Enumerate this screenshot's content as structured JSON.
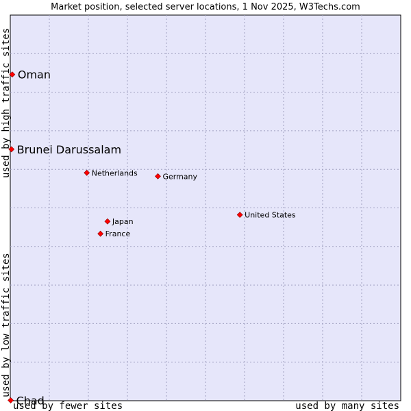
{
  "chart_data": {
    "type": "scatter",
    "title": "Market position, selected server locations, 1 Nov 2025, W3Techs.com",
    "xlabel_low": "used by fewer sites",
    "xlabel_high": "used by many sites",
    "ylabel_low": "used by low traffic sites",
    "ylabel_high": "used by high traffic sites",
    "xlim": [
      0,
      100
    ],
    "ylim": [
      0,
      100
    ],
    "grid": true,
    "points": [
      {
        "name": "Oman",
        "x": 0.5,
        "y": 84.6,
        "highlight": true
      },
      {
        "name": "Brunei Darussalam",
        "x": 0.3,
        "y": 65.2,
        "highlight": true
      },
      {
        "name": "Netherlands",
        "x": 19.6,
        "y": 59.1,
        "highlight": false
      },
      {
        "name": "Germany",
        "x": 37.8,
        "y": 58.2,
        "highlight": false
      },
      {
        "name": "United States",
        "x": 58.8,
        "y": 48.2,
        "highlight": false
      },
      {
        "name": "Japan",
        "x": 24.9,
        "y": 46.5,
        "highlight": false
      },
      {
        "name": "France",
        "x": 23.1,
        "y": 43.3,
        "highlight": false
      },
      {
        "name": "Chad",
        "x": 0.1,
        "y": 0.1,
        "highlight": true
      }
    ],
    "colors": {
      "plot_bg": "#e6e6fa",
      "grid": "#a0a0c0",
      "marker": "#ff0000",
      "marker_edge": "#800000"
    }
  }
}
